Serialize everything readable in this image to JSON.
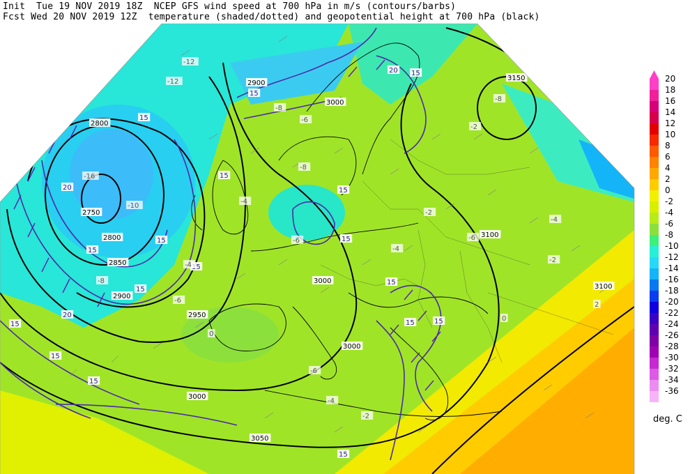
{
  "header": {
    "line1": "Init  Tue 19 NOV 2019 18Z  NCEP GFS wind speed at 700 hPa in m/s (contours/barbs)",
    "line2": "Fcst Wed 20 NOV 2019 12Z  temperature (shaded/dotted) and geopotential height at 700 hPa (black)"
  },
  "legend": {
    "unit": "deg. C",
    "levels": [
      {
        "label": "20",
        "color": "#ff3fc8"
      },
      {
        "label": "18",
        "color": "#f0209b"
      },
      {
        "label": "16",
        "color": "#d8007a"
      },
      {
        "label": "14",
        "color": "#d80048"
      },
      {
        "label": "12",
        "color": "#e40000"
      },
      {
        "label": "10",
        "color": "#f82800"
      },
      {
        "label": "8",
        "color": "#ff5a00"
      },
      {
        "label": "6",
        "color": "#ff8200"
      },
      {
        "label": "4",
        "color": "#ffa800"
      },
      {
        "label": "2",
        "color": "#ffcc00"
      },
      {
        "label": "0",
        "color": "#f2f000"
      },
      {
        "label": "-2",
        "color": "#d8f000"
      },
      {
        "label": "-4",
        "color": "#b8ec18"
      },
      {
        "label": "-6",
        "color": "#8ce03c"
      },
      {
        "label": "-8",
        "color": "#3cf07a"
      },
      {
        "label": "-10",
        "color": "#28f0d8"
      },
      {
        "label": "-12",
        "color": "#28d8f8"
      },
      {
        "label": "-14",
        "color": "#14b4f8"
      },
      {
        "label": "-16",
        "color": "#0a78f0"
      },
      {
        "label": "-18",
        "color": "#0a3cf0"
      },
      {
        "label": "-20",
        "color": "#1000e0"
      },
      {
        "label": "-22",
        "color": "#3a00c8"
      },
      {
        "label": "-24",
        "color": "#6000b4"
      },
      {
        "label": "-26",
        "color": "#8000a8"
      },
      {
        "label": "-28",
        "color": "#a000b4"
      },
      {
        "label": "-30",
        "color": "#c828d2"
      },
      {
        "label": "-32",
        "color": "#dc5ae6"
      },
      {
        "label": "-34",
        "color": "#ec8cf2"
      },
      {
        "label": "-36",
        "color": "#f8b4f8"
      }
    ]
  },
  "map": {
    "height_labels": [
      "2800",
      "2750",
      "2800",
      "2850",
      "2900",
      "2950",
      "3000",
      "3050",
      "3000",
      "3000",
      "3000",
      "3100",
      "3150",
      "3100",
      "2900"
    ],
    "wind_labels": [
      "15",
      "20",
      "15",
      "15",
      "15",
      "15",
      "15",
      "20",
      "15",
      "15",
      "15",
      "15",
      "20",
      "15",
      "15",
      "15",
      "15",
      "15",
      "15",
      "15"
    ],
    "temp_labels": [
      "-12",
      "-12",
      "-16",
      "-10",
      "-8",
      "-8",
      "-6",
      "-4",
      "-4",
      "-6",
      "-6",
      "-8",
      "-2",
      "-4",
      "-2",
      "-6",
      "-4",
      "0",
      "-2",
      "2",
      "0",
      "-4",
      "-2",
      "-6",
      "-8"
    ]
  }
}
